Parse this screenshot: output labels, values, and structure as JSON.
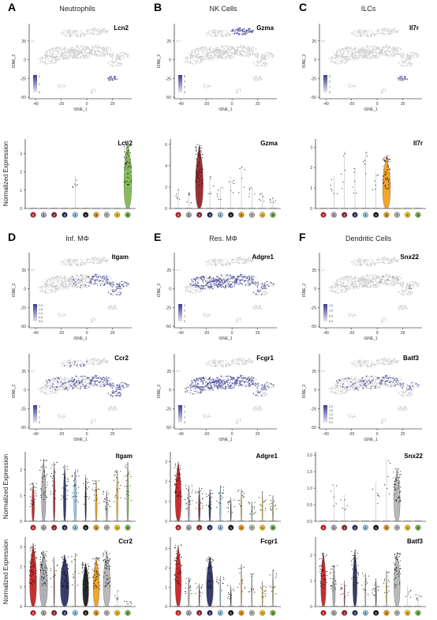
{
  "figure": {
    "tsne_x_label": "tSNE_1",
    "tsne_y_label": "tSNE_2",
    "violin_y_label": "Normalized Expression",
    "cluster_colors": [
      "#c3171b",
      "#a7a9ac",
      "#8e1a1e",
      "#21295c",
      "#8ec5e6",
      "#111111",
      "#f39c12",
      "#b3b3b3",
      "#f5c518",
      "#7ab648"
    ],
    "cluster_labels": [
      "0",
      "1",
      "2",
      "3",
      "4",
      "5",
      "6",
      "7",
      "8",
      "9"
    ],
    "tsne_x_ticks": [
      "-40",
      "-20",
      "0",
      "20"
    ],
    "tsne_y_ticks": [
      "25",
      "0",
      "-25",
      "-50"
    ]
  },
  "panels": [
    {
      "letter": "A",
      "title": "Neutrophils"
    },
    {
      "letter": "B",
      "title": "NK Cells"
    },
    {
      "letter": "C",
      "title": "ILCs"
    },
    {
      "letter": "D",
      "title": "Inf. MΦ"
    },
    {
      "letter": "E",
      "title": "Res. MΦ"
    },
    {
      "letter": "F",
      "title": "Dendritic Cells"
    }
  ],
  "tsne_plots": [
    {
      "gene": "Lcn2",
      "scale": [
        "2",
        "1",
        "0"
      ]
    },
    {
      "gene": "Gzma",
      "scale": [
        "6",
        "4",
        "2",
        "0"
      ]
    },
    {
      "gene": "Il7r",
      "scale": [
        "3",
        "2",
        "1",
        "0"
      ]
    },
    {
      "gene": "Itgam",
      "scale": [
        "2.0",
        "1.5",
        "1.0",
        "0.5",
        "0.0"
      ]
    },
    {
      "gene": "Adgre1",
      "scale": [
        "3",
        "2",
        "1",
        "0"
      ]
    },
    {
      "gene": "Snx22",
      "scale": [
        "1.5",
        "1.0",
        "0.5",
        "0.0"
      ]
    },
    {
      "gene": "Ccr2",
      "scale": [
        "3",
        "2",
        "1",
        "0"
      ]
    },
    {
      "gene": "Fcgr1",
      "scale": [
        "3",
        "2",
        "1",
        "0"
      ]
    },
    {
      "gene": "Batf3",
      "scale": [
        "2.0",
        "1.5",
        "1.0",
        "0.5",
        "0.0"
      ]
    }
  ],
  "chart_data": [
    {
      "type": "violin",
      "gene": "Lcn2",
      "y_ticks": [
        "0",
        "1",
        "2",
        "3"
      ],
      "ylim": [
        0,
        3.8
      ],
      "cluster_max": [
        0,
        0,
        0,
        0,
        1.8,
        0,
        0,
        0,
        0,
        3.7
      ],
      "violin_width": [
        0,
        0,
        0,
        0,
        0,
        0,
        0,
        0,
        0,
        0.9
      ]
    },
    {
      "type": "violin",
      "gene": "Gzma",
      "y_ticks": [
        "0",
        "2",
        "4",
        "6"
      ],
      "ylim": [
        0,
        6.5
      ],
      "cluster_max": [
        2,
        1.5,
        6,
        3,
        2,
        3,
        4,
        2,
        1.5,
        1
      ],
      "violin_width": [
        0,
        0,
        0.9,
        0,
        0,
        0,
        0,
        0,
        0,
        0
      ]
    },
    {
      "type": "violin",
      "gene": "Il7r",
      "y_ticks": [
        "0",
        "1",
        "2",
        "3"
      ],
      "ylim": [
        0,
        3.4
      ],
      "cluster_max": [
        0,
        1.6,
        2.8,
        2,
        2.8,
        1.8,
        2.6,
        0,
        0,
        0
      ],
      "violin_width": [
        0,
        0,
        0,
        0,
        0,
        0,
        0.9,
        0,
        0,
        0
      ]
    },
    {
      "type": "violin",
      "gene": "Itgam",
      "y_ticks": [
        "0",
        "1",
        "2"
      ],
      "ylim": [
        0,
        2.7
      ],
      "cluster_max": [
        1.5,
        2.4,
        2.3,
        2.2,
        2,
        1.8,
        1.6,
        1.2,
        2,
        2.3
      ],
      "violin_width": [
        0.3,
        0.5,
        0.2,
        0.3,
        0.3,
        0.15,
        0.2,
        0.2,
        0.2,
        0.2
      ]
    },
    {
      "type": "violin",
      "gene": "Adgre1",
      "y_ticks": [
        "0",
        "1",
        "2",
        "3"
      ],
      "ylim": [
        0,
        3.5
      ],
      "cluster_max": [
        3,
        1.8,
        1.7,
        1.6,
        1.8,
        1.2,
        1.6,
        1,
        1.5,
        1.3
      ],
      "violin_width": [
        0.7,
        0.2,
        0.2,
        0.2,
        0.15,
        0.1,
        0.1,
        0.1,
        0.1,
        0.1
      ]
    },
    {
      "type": "violin",
      "gene": "Snx22",
      "y_ticks": [
        "0.0",
        "0.5",
        "1.0",
        "1.5",
        "2.0"
      ],
      "ylim": [
        0,
        2.1
      ],
      "cluster_max": [
        0,
        1.1,
        0.8,
        0,
        0,
        1.2,
        1.9,
        1.6,
        0,
        0
      ],
      "violin_width": [
        0,
        0,
        0,
        0,
        0,
        0,
        0,
        0.7,
        0,
        0
      ]
    },
    {
      "type": "violin",
      "gene": "Ccr2",
      "y_ticks": [
        "0",
        "1",
        "2",
        "3"
      ],
      "ylim": [
        0,
        3.5
      ],
      "cluster_max": [
        3.2,
        2.8,
        2.5,
        2.6,
        2.7,
        2.2,
        2.5,
        2.8,
        0.8,
        0.3
      ],
      "violin_width": [
        0.8,
        0.9,
        0.1,
        1,
        0.1,
        0.7,
        0.7,
        0.8,
        0,
        0
      ]
    },
    {
      "type": "violin",
      "gene": "Fcgr1",
      "y_ticks": [
        "0",
        "1",
        "2",
        "3"
      ],
      "ylim": [
        0,
        3.6
      ],
      "cluster_max": [
        3.2,
        1.5,
        1.2,
        2.6,
        1.6,
        1.1,
        2.2,
        1.7,
        1.3,
        1.9
      ],
      "violin_width": [
        0.7,
        0.15,
        0.1,
        0.8,
        0.1,
        0.1,
        0.1,
        0.1,
        0.1,
        0.1
      ]
    },
    {
      "type": "violin",
      "gene": "Batf3",
      "y_ticks": [
        "0",
        "1",
        "2"
      ],
      "ylim": [
        0,
        2.7
      ],
      "cluster_max": [
        2.1,
        1.6,
        1,
        2.2,
        1.3,
        1.1,
        1.4,
        2.1,
        0.8,
        0.5
      ],
      "violin_width": [
        0.6,
        0.3,
        0.1,
        0.5,
        0.1,
        0.1,
        0.1,
        0.7,
        0,
        0
      ]
    }
  ]
}
